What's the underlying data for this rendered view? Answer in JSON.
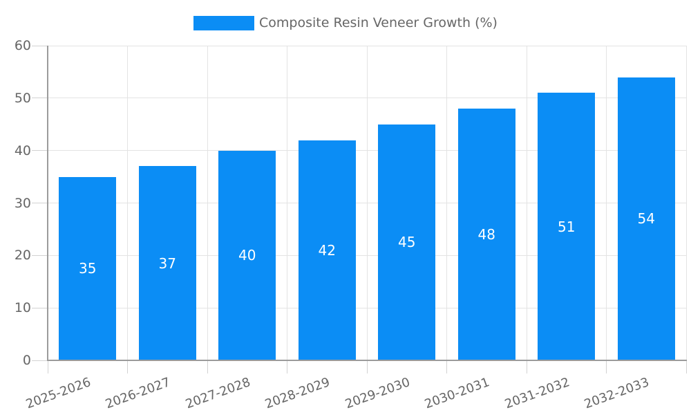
{
  "legend": {
    "label": "Composite Resin Veneer Growth (%)"
  },
  "chart_data": {
    "type": "bar",
    "title": "",
    "xlabel": "",
    "ylabel": "",
    "legend_entries": [
      "Composite Resin Veneer Growth (%)"
    ],
    "legend_position": "top-center",
    "categories": [
      "2025-2026",
      "2026-2027",
      "2027-2028",
      "2028-2029",
      "2029-2030",
      "2030-2031",
      "2031-2032",
      "2032-2033"
    ],
    "values": [
      35,
      37,
      40,
      42,
      45,
      48,
      51,
      54
    ],
    "ylim": [
      0,
      60
    ],
    "yticks": [
      0,
      10,
      20,
      30,
      40,
      50,
      60
    ],
    "grid": true,
    "x_tick_rotation_deg": -20,
    "colors": {
      "bar": "#0b8df5",
      "bar_label": "#ffffff",
      "grid": "#e3e3e3",
      "tick_mark": "#d2d2d2",
      "axis_line": "#9b9b9b",
      "tick_label": "#666666",
      "background": "#ffffff"
    }
  }
}
